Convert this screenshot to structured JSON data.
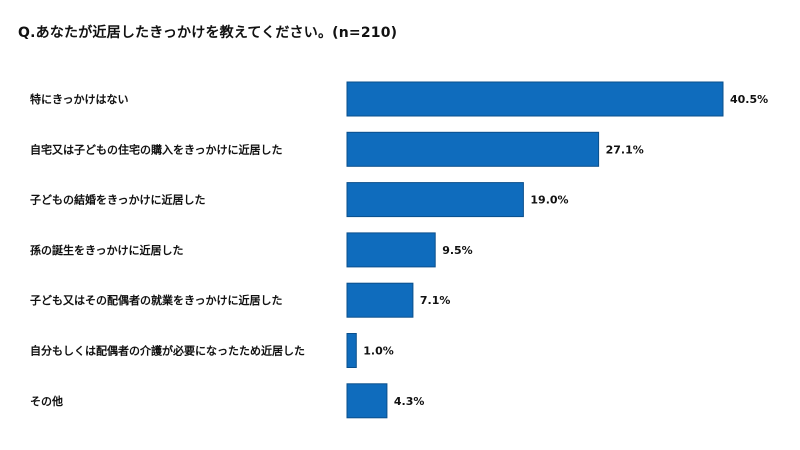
{
  "title": "Q.あなたが近居したきっかけを教えてください。(n=210)",
  "colors": {
    "bar": "#0f6cbd",
    "bar_border": "#0a4f8c"
  },
  "chart_data": {
    "type": "bar",
    "orientation": "horizontal",
    "title": "Q.あなたが近居したきっかけを教えてください。(n=210)",
    "categories": [
      "特にきっかけはない",
      "自宅又は子どもの住宅の購入をきっかけに近居した",
      "子どもの結婚をきっかけに近居した",
      "孫の誕生をきっかけに近居した",
      "子ども又はその配偶者の就業をきっかけに近居した",
      "自分もしくは配偶者の介護が必要になったため近居した",
      "その他"
    ],
    "values": [
      40.5,
      27.1,
      19.0,
      9.5,
      7.1,
      1.0,
      4.3
    ],
    "value_labels": [
      "40.5%",
      "27.1%",
      "19.0%",
      "9.5%",
      "7.1%",
      "1.0%",
      "4.3%"
    ],
    "unit": "%",
    "xlim": [
      0,
      42
    ],
    "grid": false,
    "legend": "none"
  }
}
